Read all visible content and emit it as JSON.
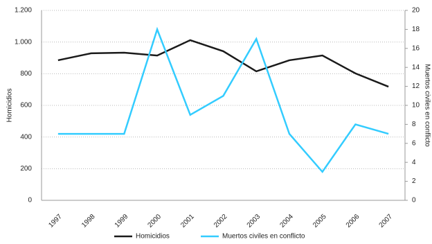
{
  "chart_data": {
    "type": "line",
    "categories": [
      "1997",
      "1998",
      "1999",
      "2000",
      "2001",
      "2002",
      "2003",
      "2004",
      "2005",
      "2006",
      "2007"
    ],
    "series": [
      {
        "name": "Homicidios",
        "color": "#1a1a1a",
        "values": [
          885,
          929,
          933,
          915,
          1012,
          942,
          815,
          885,
          915,
          802,
          718
        ]
      },
      {
        "name": "Muertos civiles en conflicto",
        "color": "#33ccff",
        "axis": "y2",
        "values": [
          7,
          7,
          7,
          18,
          9,
          11,
          17,
          7,
          3,
          8,
          7
        ]
      }
    ],
    "ylabel": "Homicidios",
    "y2label": "Muertos civiles en conflicto",
    "ylim": [
      0,
      1200
    ],
    "yticks": [
      0,
      200,
      400,
      600,
      800,
      {
        "value": 1000,
        "label": "1.000"
      },
      {
        "value": 1200,
        "label": "1.200"
      }
    ],
    "y2lim": [
      0,
      20
    ],
    "y2ticks": [
      0,
      2,
      4,
      6,
      8,
      10,
      12,
      14,
      16,
      18,
      20
    ],
    "grid": true,
    "legend": "bottom"
  }
}
